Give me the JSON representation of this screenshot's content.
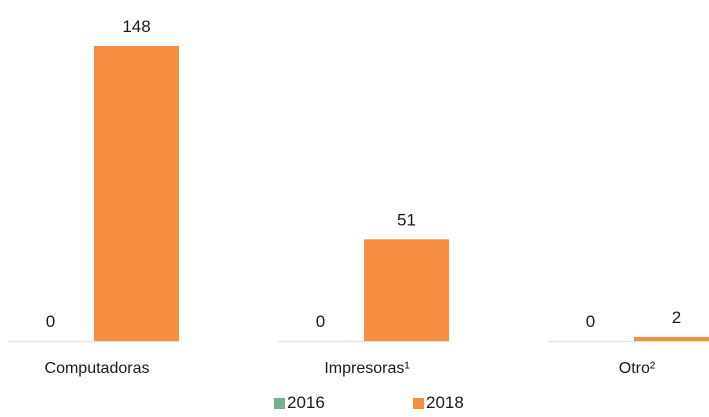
{
  "colors": {
    "series_2016": "#70b48f",
    "series_2018": "#f68e3f",
    "baseline": "#d9e6e0",
    "text": "#1a1a1a"
  },
  "chart_data": {
    "type": "bar",
    "categories": [
      "Computadoras",
      "Impresoras¹",
      "Otro²"
    ],
    "series": [
      {
        "name": "2016",
        "values": [
          0,
          0,
          0
        ]
      },
      {
        "name": "2018",
        "values": [
          148,
          51,
          2
        ]
      }
    ],
    "data_labels": [
      [
        "0",
        "0",
        "0"
      ],
      [
        "148",
        "51",
        "2"
      ]
    ],
    "ylim": [
      0,
      148
    ],
    "grid": false,
    "legend_position": "bottom"
  }
}
